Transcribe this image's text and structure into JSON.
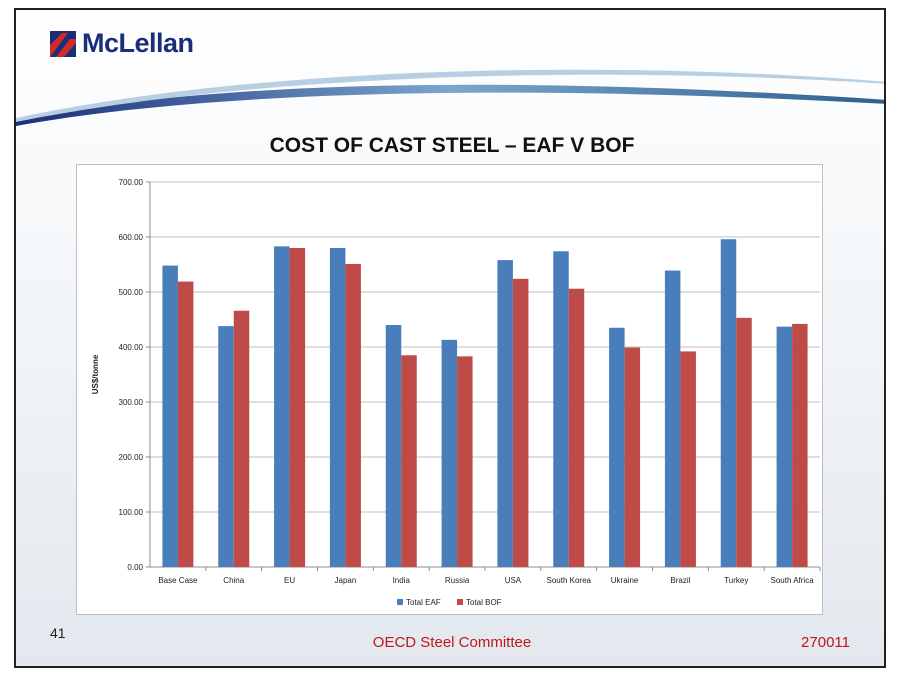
{
  "header": {
    "logo_text": "McLellan"
  },
  "slide": {
    "title": "COST OF CAST STEEL – EAF V BOF"
  },
  "footer": {
    "page_number": "41",
    "center_text": "OECD Steel Committee",
    "right_text": "270011"
  },
  "colors": {
    "eaf": "#4a7ebb",
    "bof": "#be4b48",
    "footer_text": "#c0161b",
    "logo": "#1a2f7a"
  },
  "chart_data": {
    "type": "bar",
    "title": "",
    "xlabel": "",
    "ylabel": "US$/tonne",
    "ylim": [
      0,
      700
    ],
    "yticks": [
      0,
      100,
      200,
      300,
      400,
      500,
      600,
      700
    ],
    "ytick_labels": [
      "0.00",
      "100.00",
      "200.00",
      "300.00",
      "400.00",
      "500.00",
      "600.00",
      "700.00"
    ],
    "categories": [
      "Base Case",
      "China",
      "EU",
      "Japan",
      "India",
      "Russia",
      "USA",
      "South Korea",
      "Ukraine",
      "Brazil",
      "Turkey",
      "South Africa"
    ],
    "series": [
      {
        "name": "Total EAF",
        "color": "#4a7ebb",
        "values": [
          548,
          438,
          583,
          580,
          440,
          413,
          558,
          574,
          435,
          539,
          596,
          437
        ]
      },
      {
        "name": "Total BOF",
        "color": "#be4b48",
        "values": [
          519,
          466,
          580,
          551,
          385,
          383,
          524,
          506,
          399,
          392,
          453,
          442
        ]
      }
    ],
    "legend_position": "bottom",
    "grid": true
  }
}
